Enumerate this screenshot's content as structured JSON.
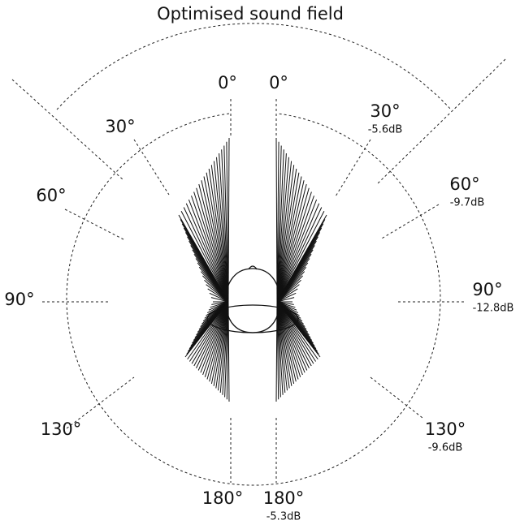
{
  "title": "Optimised sound field",
  "left": {
    "labels": [
      "0°",
      "30°",
      "60°",
      "90°",
      "130°",
      "180°"
    ]
  },
  "right": [
    {
      "angle": "0°"
    },
    {
      "angle": "30°",
      "level": "-5.6dB"
    },
    {
      "angle": "60°",
      "level": "-9.7dB"
    },
    {
      "angle": "90°",
      "level": "-12.8dB"
    },
    {
      "angle": "130°",
      "level": "-9.6dB"
    },
    {
      "angle": "180°",
      "level": "-5.3dB"
    }
  ]
}
